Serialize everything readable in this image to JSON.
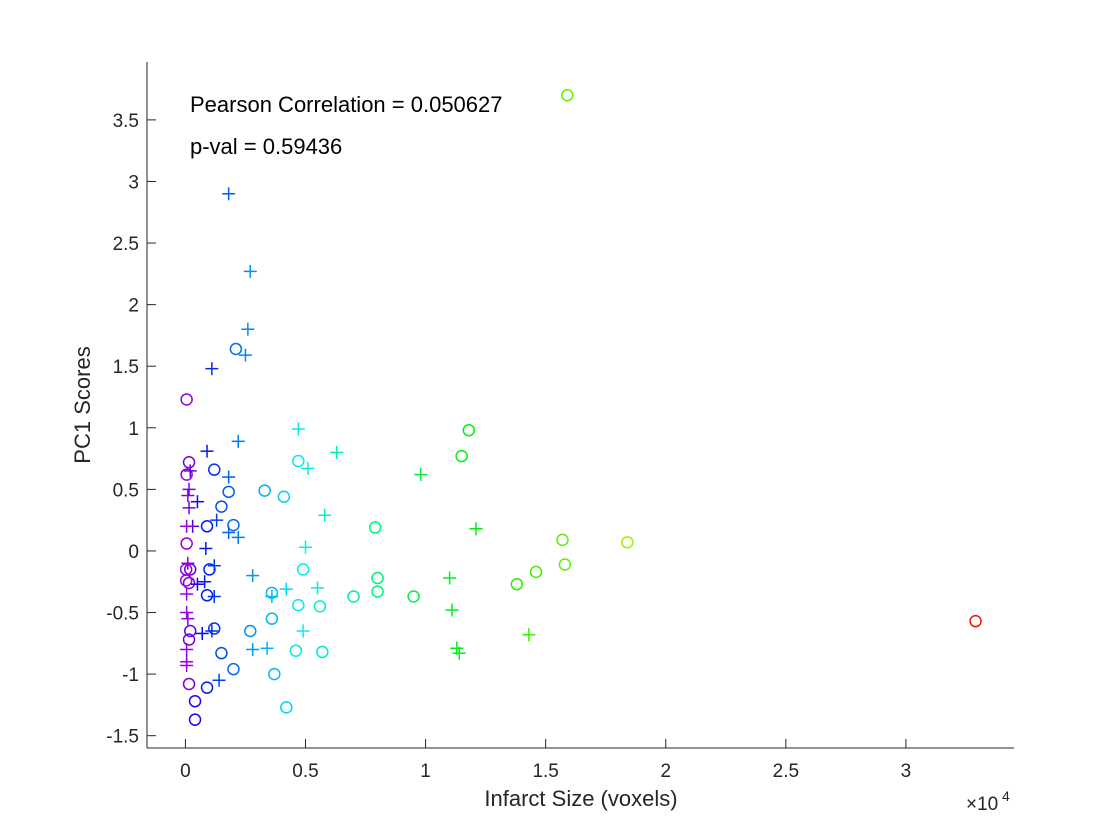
{
  "chart_data": {
    "type": "scatter",
    "title": "",
    "xlabel": "Infarct Size (voxels)",
    "ylabel": "PC1 Scores",
    "xlim": [
      -1600,
      34500
    ],
    "ylim": [
      -1.6,
      3.97
    ],
    "x_ticks": [
      0,
      5000,
      10000,
      15000,
      20000,
      25000,
      30000
    ],
    "x_tick_labels": [
      "0",
      "0.5",
      "1",
      "1.5",
      "2",
      "2.5",
      "3"
    ],
    "x_exponent_label": "×10",
    "x_exponent_power": "4",
    "y_ticks": [
      -1.5,
      -1,
      -0.5,
      0,
      0.5,
      1,
      1.5,
      2,
      2.5,
      3,
      3.5
    ],
    "y_tick_labels": [
      "-1.5",
      "-1",
      "-0.5",
      "0",
      "0.5",
      "1",
      "1.5",
      "2",
      "2.5",
      "3",
      "3.5"
    ],
    "grid": false,
    "box": "left-bottom axes only",
    "colormap": "hsv (violet → blue → cyan → green → yellow → orange → red by infarct size)",
    "annotations": [
      {
        "text": "Pearson Correlation = 0.050627"
      },
      {
        "text": "p-val = 0.59436"
      }
    ],
    "series": [
      {
        "marker": "circle",
        "points": [
          [
            15900,
            3.7
          ],
          [
            32900,
            -0.57
          ],
          [
            18400,
            0.07
          ],
          [
            11800,
            0.98
          ],
          [
            11500,
            0.77
          ],
          [
            15700,
            0.09
          ],
          [
            15800,
            -0.11
          ],
          [
            14600,
            -0.17
          ],
          [
            13800,
            -0.27
          ],
          [
            7900,
            0.19
          ],
          [
            8000,
            -0.22
          ],
          [
            8000,
            -0.33
          ],
          [
            7000,
            -0.37
          ],
          [
            9500,
            -0.37
          ],
          [
            4700,
            0.73
          ],
          [
            4100,
            0.44
          ],
          [
            3300,
            0.49
          ],
          [
            2100,
            1.64
          ],
          [
            4900,
            -0.15
          ],
          [
            3600,
            -0.34
          ],
          [
            4700,
            -0.44
          ],
          [
            5600,
            -0.45
          ],
          [
            3600,
            -0.55
          ],
          [
            2700,
            -0.65
          ],
          [
            4600,
            -0.81
          ],
          [
            5700,
            -0.82
          ],
          [
            3700,
            -1.0
          ],
          [
            4200,
            -1.27
          ],
          [
            2000,
            0.21
          ],
          [
            1800,
            0.48
          ],
          [
            1200,
            0.66
          ],
          [
            1500,
            0.36
          ],
          [
            900,
            0.2
          ],
          [
            1000,
            -0.15
          ],
          [
            900,
            -0.36
          ],
          [
            1200,
            -0.63
          ],
          [
            1500,
            -0.83
          ],
          [
            2000,
            -0.96
          ],
          [
            900,
            -1.11
          ],
          [
            400,
            -1.22
          ],
          [
            400,
            -1.37
          ],
          [
            150,
            0.72
          ],
          [
            200,
            -0.15
          ],
          [
            150,
            -0.26
          ],
          [
            200,
            -0.65
          ],
          [
            150,
            -0.72
          ],
          [
            150,
            -1.08
          ],
          [
            50,
            1.23
          ],
          [
            50,
            0.62
          ],
          [
            50,
            0.06
          ],
          [
            30,
            -0.15
          ],
          [
            30,
            -0.24
          ]
        ]
      },
      {
        "marker": "plus",
        "points": [
          [
            1800,
            2.9
          ],
          [
            2700,
            2.27
          ],
          [
            2600,
            1.8
          ],
          [
            2500,
            1.59
          ],
          [
            1100,
            1.48
          ],
          [
            2200,
            0.89
          ],
          [
            4700,
            0.99
          ],
          [
            6300,
            0.8
          ],
          [
            5100,
            0.67
          ],
          [
            9800,
            0.62
          ],
          [
            12100,
            0.18
          ],
          [
            5800,
            0.29
          ],
          [
            5000,
            0.03
          ],
          [
            1800,
            0.6
          ],
          [
            1800,
            0.15
          ],
          [
            2200,
            0.11
          ],
          [
            900,
            0.81
          ],
          [
            11000,
            -0.22
          ],
          [
            11100,
            -0.48
          ],
          [
            11300,
            -0.79
          ],
          [
            11400,
            -0.83
          ],
          [
            14300,
            -0.68
          ],
          [
            5500,
            -0.3
          ],
          [
            4200,
            -0.31
          ],
          [
            2800,
            -0.2
          ],
          [
            3600,
            -0.37
          ],
          [
            4900,
            -0.65
          ],
          [
            3400,
            -0.79
          ],
          [
            2800,
            -0.8
          ],
          [
            1300,
            0.25
          ],
          [
            500,
            0.4
          ],
          [
            300,
            0.2
          ],
          [
            850,
            0.02
          ],
          [
            1200,
            -0.12
          ],
          [
            800,
            -0.25
          ],
          [
            500,
            -0.27
          ],
          [
            1200,
            -0.37
          ],
          [
            1100,
            -0.65
          ],
          [
            700,
            -0.67
          ],
          [
            1400,
            -1.05
          ],
          [
            200,
            0.65
          ],
          [
            150,
            0.5
          ],
          [
            100,
            0.45
          ],
          [
            150,
            0.35
          ],
          [
            100,
            -0.1
          ],
          [
            50,
            -0.35
          ],
          [
            100,
            -0.55
          ],
          [
            50,
            -0.9
          ],
          [
            50,
            -0.93
          ],
          [
            50,
            -0.8
          ],
          [
            50,
            0.2
          ],
          [
            50,
            -0.5
          ]
        ]
      }
    ]
  }
}
